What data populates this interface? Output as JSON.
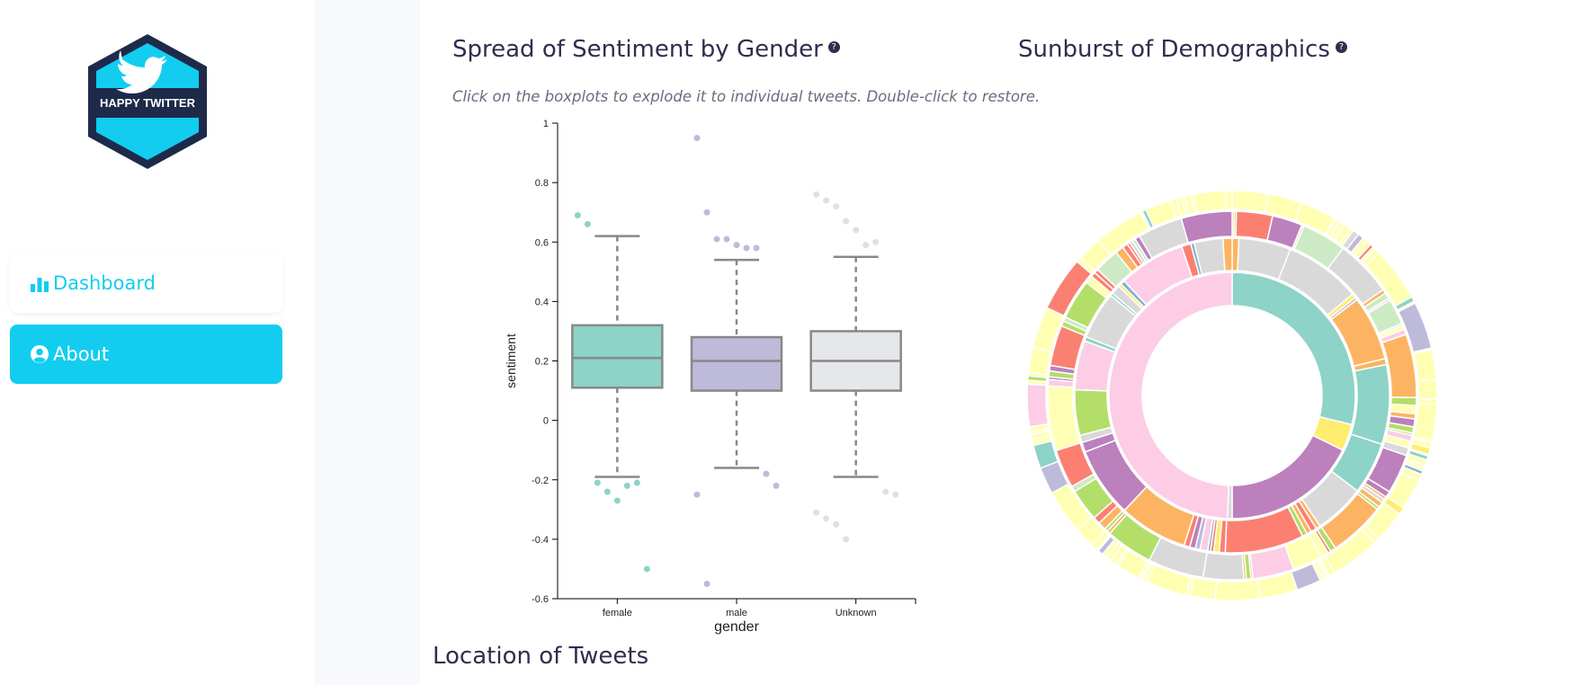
{
  "app": {
    "logo_text": "HAPPY TWITTER"
  },
  "nav": {
    "items": [
      {
        "label": "Dashboard",
        "icon": "bar-chart-icon"
      },
      {
        "label": "About",
        "icon": "user-circle-icon"
      }
    ]
  },
  "boxplot": {
    "title": "Spread of Sentiment by Gender",
    "hint": "Click on the boxplots to explode it to individual tweets. Double-click to restore."
  },
  "sunburst": {
    "title": "Sunburst of Demographics"
  },
  "location": {
    "title": "Location of Tweets"
  },
  "colors": {
    "accent": "#12cdf0",
    "navy": "#1e2a4a",
    "female": "#8dd3c7",
    "male": "#bebada",
    "unknown": "#e5e7ea"
  },
  "chart_data": [
    {
      "type": "box",
      "xlabel": "gender",
      "ylabel": "sentiment",
      "categories": [
        "female",
        "male",
        "Unknown"
      ],
      "ylim": [
        -0.6,
        1
      ],
      "yticks": [
        1,
        0.8,
        0.6,
        0.4,
        0.2,
        0,
        -0.2,
        -0.4,
        -0.6
      ],
      "boxes": [
        {
          "name": "female",
          "whisker_low": -0.19,
          "q1": 0.11,
          "median": 0.21,
          "q3": 0.32,
          "whisker_high": 0.62,
          "outliers": [
            0.69,
            0.66,
            -0.21,
            -0.24,
            -0.27,
            -0.22,
            -0.21,
            -0.5
          ]
        },
        {
          "name": "male",
          "whisker_low": -0.16,
          "q1": 0.1,
          "median": 0.2,
          "q3": 0.28,
          "whisker_high": 0.54,
          "outliers": [
            0.95,
            0.7,
            0.61,
            0.61,
            0.59,
            0.58,
            0.58,
            -0.18,
            -0.22,
            -0.25,
            -0.55
          ]
        },
        {
          "name": "Unknown",
          "whisker_low": -0.19,
          "q1": 0.1,
          "median": 0.2,
          "q3": 0.3,
          "whisker_high": 0.55,
          "outliers": [
            0.76,
            0.74,
            0.72,
            0.67,
            0.64,
            0.59,
            0.6,
            -0.24,
            -0.25,
            -0.31,
            -0.33,
            -0.35,
            -0.4
          ]
        }
      ]
    },
    {
      "type": "sunburst",
      "rings": [
        {
          "name": "gender",
          "segments": [
            {
              "color": "#8dd3c7",
              "value": 0.288
            },
            {
              "color": "#ffed6f",
              "value": 0.035
            },
            {
              "color": "#bc80bd",
              "value": 0.177
            },
            {
              "color": "#d9d9d9",
              "value": 0.006
            },
            {
              "color": "#fccde5",
              "value": 0.494
            }
          ]
        }
      ]
    }
  ]
}
